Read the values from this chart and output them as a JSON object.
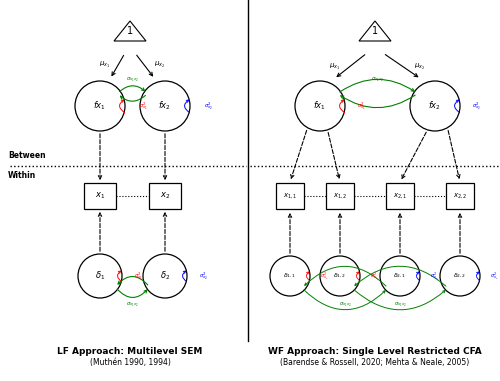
{
  "title_left": "LF Approach: Multilevel SEM",
  "subtitle_left": "(Muthén 1990, 1994)",
  "title_right": "WF Approach: Single Level Restricted CFA",
  "subtitle_right": "(Barendse & Rossell, 2020; Mehta & Neale, 2005)",
  "between_label": "Between",
  "within_label": "Within",
  "bg_color": "#ffffff",
  "col_red": "#ff0000",
  "col_blue": "#0000ff",
  "col_green": "#008000",
  "col_black": "#000000"
}
